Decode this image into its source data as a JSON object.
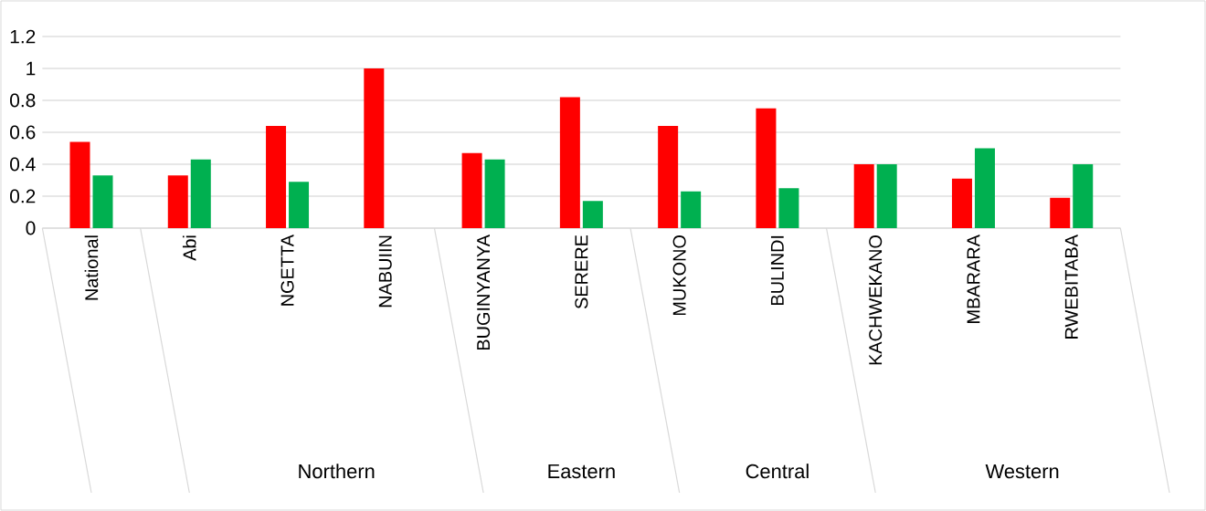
{
  "chart_data": {
    "type": "bar",
    "categories": [
      "National",
      "Abi",
      "NGETTA",
      "NABUIIN",
      "BUGINYANYA",
      "SERERE",
      "MUKONO",
      "BULINDI",
      "KACHWEKANO",
      "MBARARA",
      "RWEBITABA"
    ],
    "series": [
      {
        "color": "#ff0000",
        "values": [
          0.54,
          0.33,
          0.64,
          1.0,
          0.47,
          0.82,
          0.64,
          0.75,
          0.4,
          0.31,
          0.19
        ]
      },
      {
        "color": "#00b050",
        "values": [
          0.33,
          0.43,
          0.29,
          null,
          0.43,
          0.17,
          0.23,
          0.25,
          0.4,
          0.5,
          0.4
        ]
      }
    ],
    "annotations": [
      "Northern",
      "Eastern",
      "Central",
      "Western"
    ],
    "ylim": [
      0,
      1.2
    ],
    "yticks": [
      0,
      0.2,
      0.4,
      0.6,
      0.8,
      1,
      1.2
    ],
    "grid": "y"
  }
}
